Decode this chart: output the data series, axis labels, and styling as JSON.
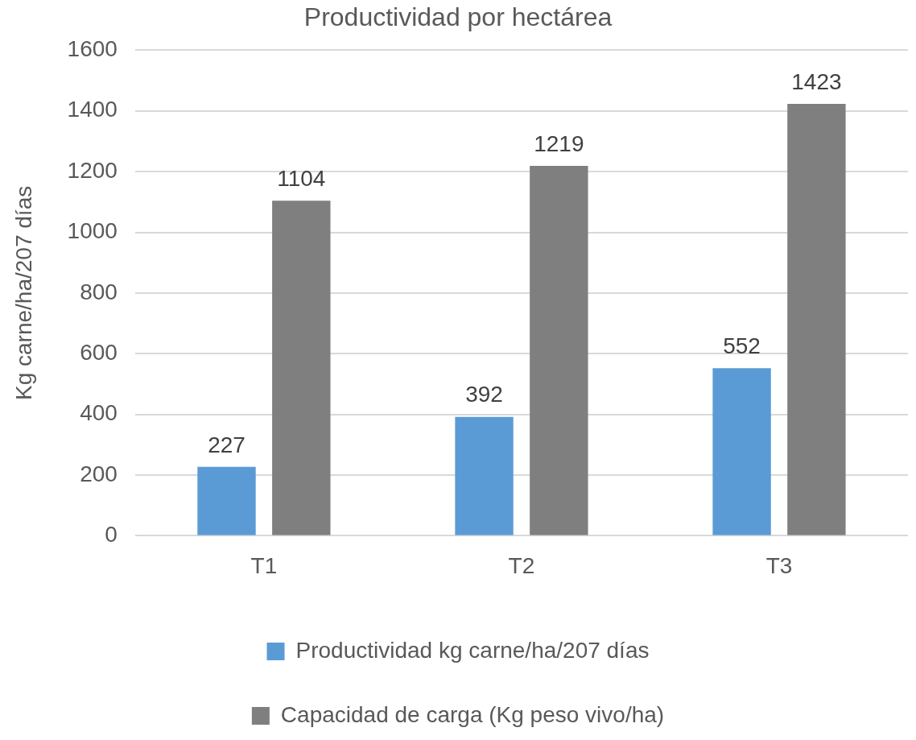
{
  "chart_data": {
    "type": "bar",
    "title": "Productividad por hectárea",
    "ylabel": "Kg carne/ha/207 días",
    "categories": [
      "T1",
      "T2",
      "T3"
    ],
    "series": [
      {
        "name": "Productividad kg carne/ha/207 días",
        "color": "#5b9bd5",
        "values": [
          227,
          392,
          552
        ]
      },
      {
        "name": "Capacidad de carga (Kg peso vivo/ha)",
        "color": "#7f7f7f",
        "values": [
          1104,
          1219,
          1423
        ]
      }
    ],
    "ylim": [
      0,
      1600
    ],
    "yticks": [
      0,
      200,
      400,
      600,
      800,
      1000,
      1200,
      1400,
      1600
    ],
    "grid": "y",
    "legend": "bottom",
    "data_labels": true
  }
}
